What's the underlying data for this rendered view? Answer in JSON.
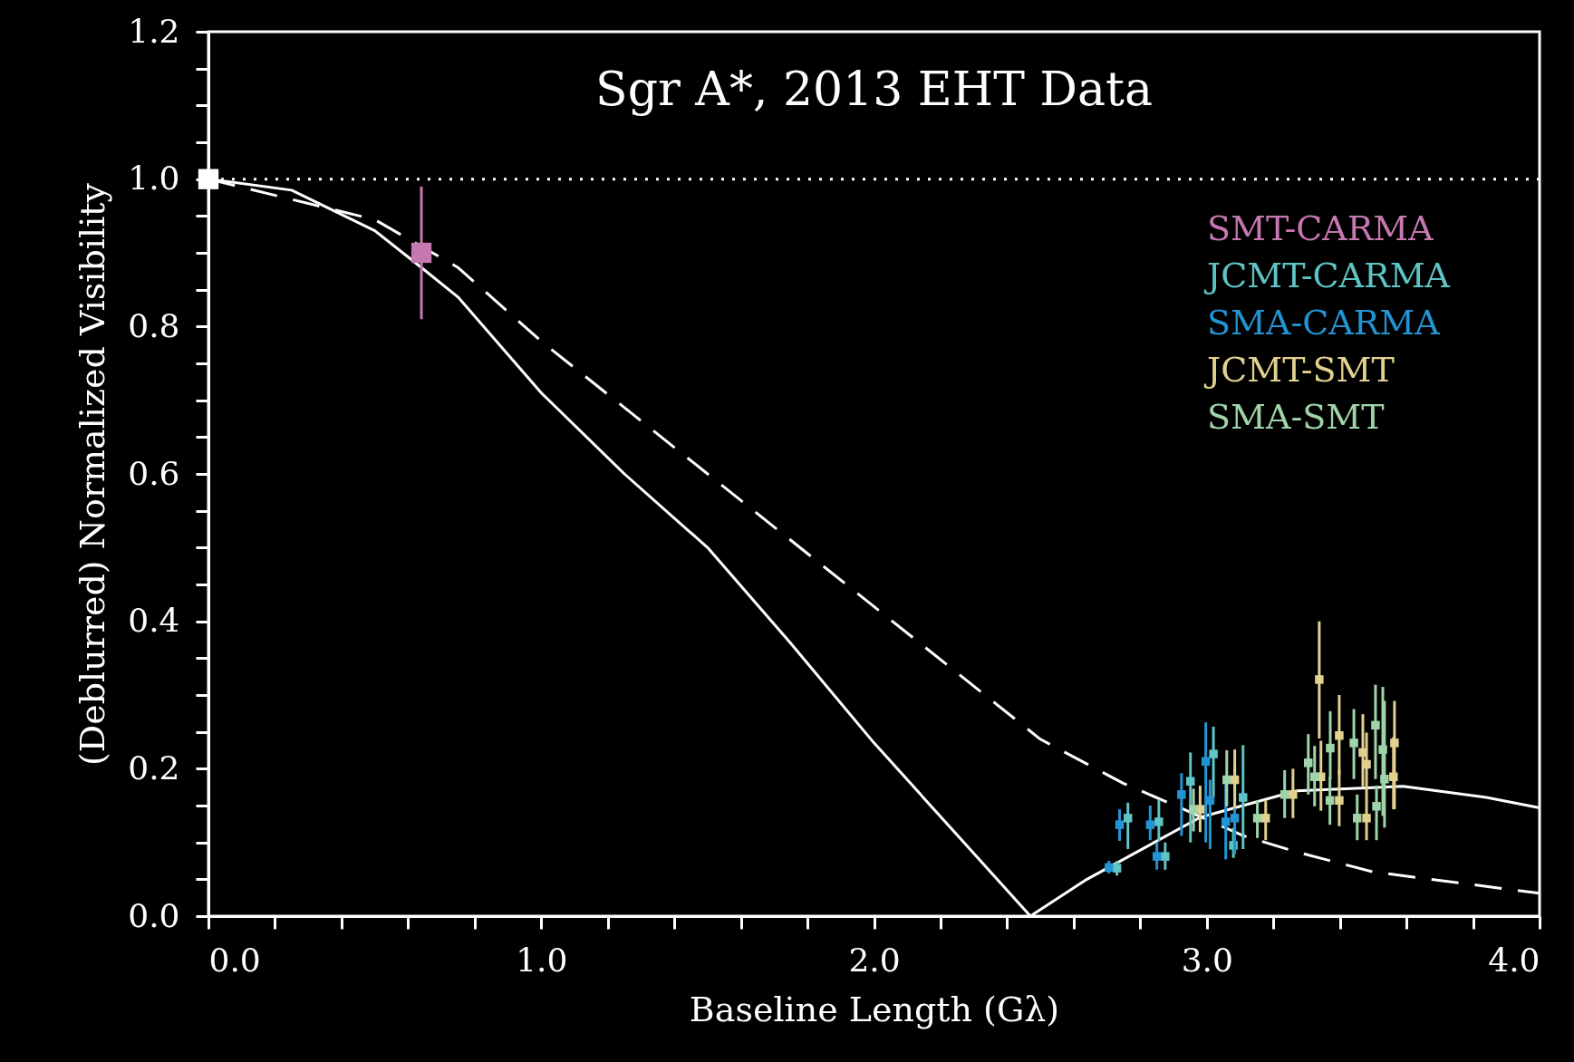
{
  "chart_data": {
    "type": "scatter",
    "title": "Sgr A*, 2013 EHT Data",
    "xlabel": "Baseline Length (Gλ)",
    "ylabel": "(Deblurred) Normalized Visibility",
    "xlim": [
      0,
      4
    ],
    "ylim": [
      0,
      1.2
    ],
    "xticks": [
      {
        "value": 0,
        "label": "0.0"
      },
      {
        "value": 0.2,
        "label": null
      },
      {
        "value": 0.4,
        "label": null
      },
      {
        "value": 0.6,
        "label": null
      },
      {
        "value": 0.8,
        "label": null
      },
      {
        "value": 1,
        "label": "1.0"
      },
      {
        "value": 1.2,
        "label": null
      },
      {
        "value": 1.4,
        "label": null
      },
      {
        "value": 1.6,
        "label": null
      },
      {
        "value": 1.8,
        "label": null
      },
      {
        "value": 2,
        "label": "2.0"
      },
      {
        "value": 2.2,
        "label": null
      },
      {
        "value": 2.4,
        "label": null
      },
      {
        "value": 2.6,
        "label": null
      },
      {
        "value": 2.8,
        "label": null
      },
      {
        "value": 3,
        "label": "3.0"
      },
      {
        "value": 3.2,
        "label": null
      },
      {
        "value": 3.4,
        "label": null
      },
      {
        "value": 3.6,
        "label": null
      },
      {
        "value": 3.8,
        "label": null
      },
      {
        "value": 4,
        "label": "4.0"
      }
    ],
    "yticks": [
      {
        "value": 0,
        "label": "0.0"
      },
      {
        "value": 0.05,
        "label": null
      },
      {
        "value": 0.1,
        "label": null
      },
      {
        "value": 0.15,
        "label": null
      },
      {
        "value": 0.2,
        "label": "0.2"
      },
      {
        "value": 0.25,
        "label": null
      },
      {
        "value": 0.3,
        "label": null
      },
      {
        "value": 0.35,
        "label": null
      },
      {
        "value": 0.4,
        "label": "0.4"
      },
      {
        "value": 0.45,
        "label": null
      },
      {
        "value": 0.5,
        "label": null
      },
      {
        "value": 0.55,
        "label": null
      },
      {
        "value": 0.6,
        "label": "0.6"
      },
      {
        "value": 0.65,
        "label": null
      },
      {
        "value": 0.7,
        "label": null
      },
      {
        "value": 0.75,
        "label": null
      },
      {
        "value": 0.8,
        "label": "0.8"
      },
      {
        "value": 0.85,
        "label": null
      },
      {
        "value": 0.9,
        "label": null
      },
      {
        "value": 0.95,
        "label": null
      },
      {
        "value": 1,
        "label": "1.0"
      },
      {
        "value": 1.05,
        "label": null
      },
      {
        "value": 1.1,
        "label": null
      },
      {
        "value": 1.15,
        "label": null
      },
      {
        "value": 1.2,
        "label": "1.2"
      }
    ],
    "grid": false,
    "legend": "top right",
    "marker": "square",
    "ref_lines": [
      {
        "axis": "y",
        "value": 1,
        "color": "#ffffff",
        "line_style": "dotted"
      }
    ],
    "series": [
      {
        "type": "line",
        "color": "#ffffff",
        "line_style": "solid",
        "marker": "none",
        "x": [
          0,
          0.25,
          0.5,
          0.64,
          0.75,
          1,
          1.25,
          1.5,
          1.75,
          2,
          2.25,
          2.47,
          2.64,
          2.98,
          3.27,
          3.59,
          3.84,
          4
        ],
        "values": [
          1,
          0.985,
          0.93,
          0.88,
          0.84,
          0.71,
          0.6,
          0.5,
          0.37,
          0.235,
          0.11,
          0,
          0.05,
          0.134,
          0.17,
          0.176,
          0.161,
          0.147
        ]
      },
      {
        "type": "line",
        "color": "#ffffff",
        "line_style": "dashed",
        "marker": "none",
        "x": [
          0,
          0.5,
          0.75,
          1,
          1.5,
          2,
          2.5,
          2.75,
          2.91,
          3.11,
          3.27,
          3.5,
          4
        ],
        "values": [
          1,
          0.945,
          0.88,
          0.78,
          0.6,
          0.42,
          0.24,
          0.18,
          0.149,
          0.109,
          0.087,
          0.06,
          0.031
        ]
      },
      {
        "color": "#ffffff",
        "x": [
          0
        ],
        "values": [
          1
        ]
      },
      {
        "name": "SMT-CARMA",
        "color": "#c678b0",
        "x": [
          0.64
        ],
        "values": [
          0.9
        ],
        "errors": [
          [
            0.81,
            0.99
          ]
        ]
      },
      {
        "name": "JCMT-CARMA",
        "color": "#5ec4c4",
        "x": [
          2.73,
          2.763,
          2.856,
          2.875,
          2.951,
          3.02,
          3.08,
          3.109
        ],
        "values": [
          0.065,
          0.133,
          0.128,
          0.081,
          0.183,
          0.22,
          0.096,
          0.161
        ],
        "errors": [
          [
            0.055,
            0.075
          ],
          [
            0.091,
            0.154
          ],
          [
            0.102,
            0.158
          ],
          [
            0.063,
            0.1
          ],
          [
            0.1,
            0.222
          ],
          [
            0.161,
            0.257
          ],
          [
            0.079,
            0.12
          ],
          [
            0.091,
            0.232
          ]
        ]
      },
      {
        "name": "SMA-CARMA",
        "color": "#2394d3",
        "x": [
          2.706,
          2.738,
          2.83,
          2.85,
          2.924,
          2.997,
          3.01,
          3.057,
          3.084
        ],
        "values": [
          0.066,
          0.124,
          0.124,
          0.081,
          0.165,
          0.21,
          0.157,
          0.128,
          0.133
        ],
        "errors": [
          [
            0.058,
            0.075
          ],
          [
            0.102,
            0.145
          ],
          [
            0.103,
            0.15
          ],
          [
            0.063,
            0.1
          ],
          [
            0.109,
            0.194
          ],
          [
            0.1,
            0.263
          ],
          [
            0.091,
            0.185
          ],
          [
            0.077,
            0.189
          ],
          [
            0.084,
            0.208
          ]
        ]
      },
      {
        "name": "JCMT-SMT",
        "color": "#e1d08e",
        "x": [
          2.98,
          3.084,
          3.177,
          3.259,
          3.338,
          3.343,
          3.398,
          3.398,
          3.469,
          3.48,
          3.48,
          3.53,
          3.561,
          3.564
        ],
        "values": [
          0.145,
          0.185,
          0.133,
          0.165,
          0.321,
          0.189,
          0.245,
          0.157,
          0.222,
          0.206,
          0.133,
          null,
          0.189,
          0.235
        ],
        "errors": [
          [
            0.114,
            0.177
          ],
          [
            0.146,
            0.226
          ],
          [
            0.103,
            0.157
          ],
          [
            0.133,
            0.2
          ],
          [
            0.241,
            0.4
          ],
          [
            0.143,
            0.238
          ],
          [
            0.192,
            0.3
          ],
          [
            0.122,
            0.198
          ],
          [
            0.176,
            0.274
          ],
          [
            0.161,
            0.249
          ],
          [
            0.103,
            0.161
          ],
          null,
          [
            0.145,
            0.243
          ],
          [
            0.145,
            0.292
          ]
        ]
      },
      {
        "name": "SMA-SMT",
        "color": "#9fd4a8",
        "x": [
          2.96,
          3.06,
          3.152,
          3.234,
          3.305,
          3.324,
          3.371,
          3.37,
          3.442,
          3.452,
          3.507,
          3.51,
          3.529,
          3.534
        ],
        "values": [
          0.145,
          0.185,
          0.133,
          0.165,
          0.208,
          0.189,
          0.228,
          0.157,
          0.235,
          0.133,
          0.259,
          0.149,
          0.226,
          0.186
        ],
        "errors": [
          [
            0.115,
            0.173
          ],
          [
            0.149,
            0.225
          ],
          [
            0.106,
            0.157
          ],
          [
            0.133,
            0.198
          ],
          [
            0.165,
            0.247
          ],
          [
            0.149,
            0.231
          ],
          [
            0.186,
            0.278
          ],
          [
            0.124,
            0.189
          ],
          [
            0.186,
            0.281
          ],
          [
            0.103,
            0.165
          ],
          [
            0.186,
            0.314
          ],
          [
            0.103,
            0.177
          ],
          [
            0.136,
            0.311
          ],
          [
            0.12,
            0.292
          ]
        ]
      }
    ]
  }
}
